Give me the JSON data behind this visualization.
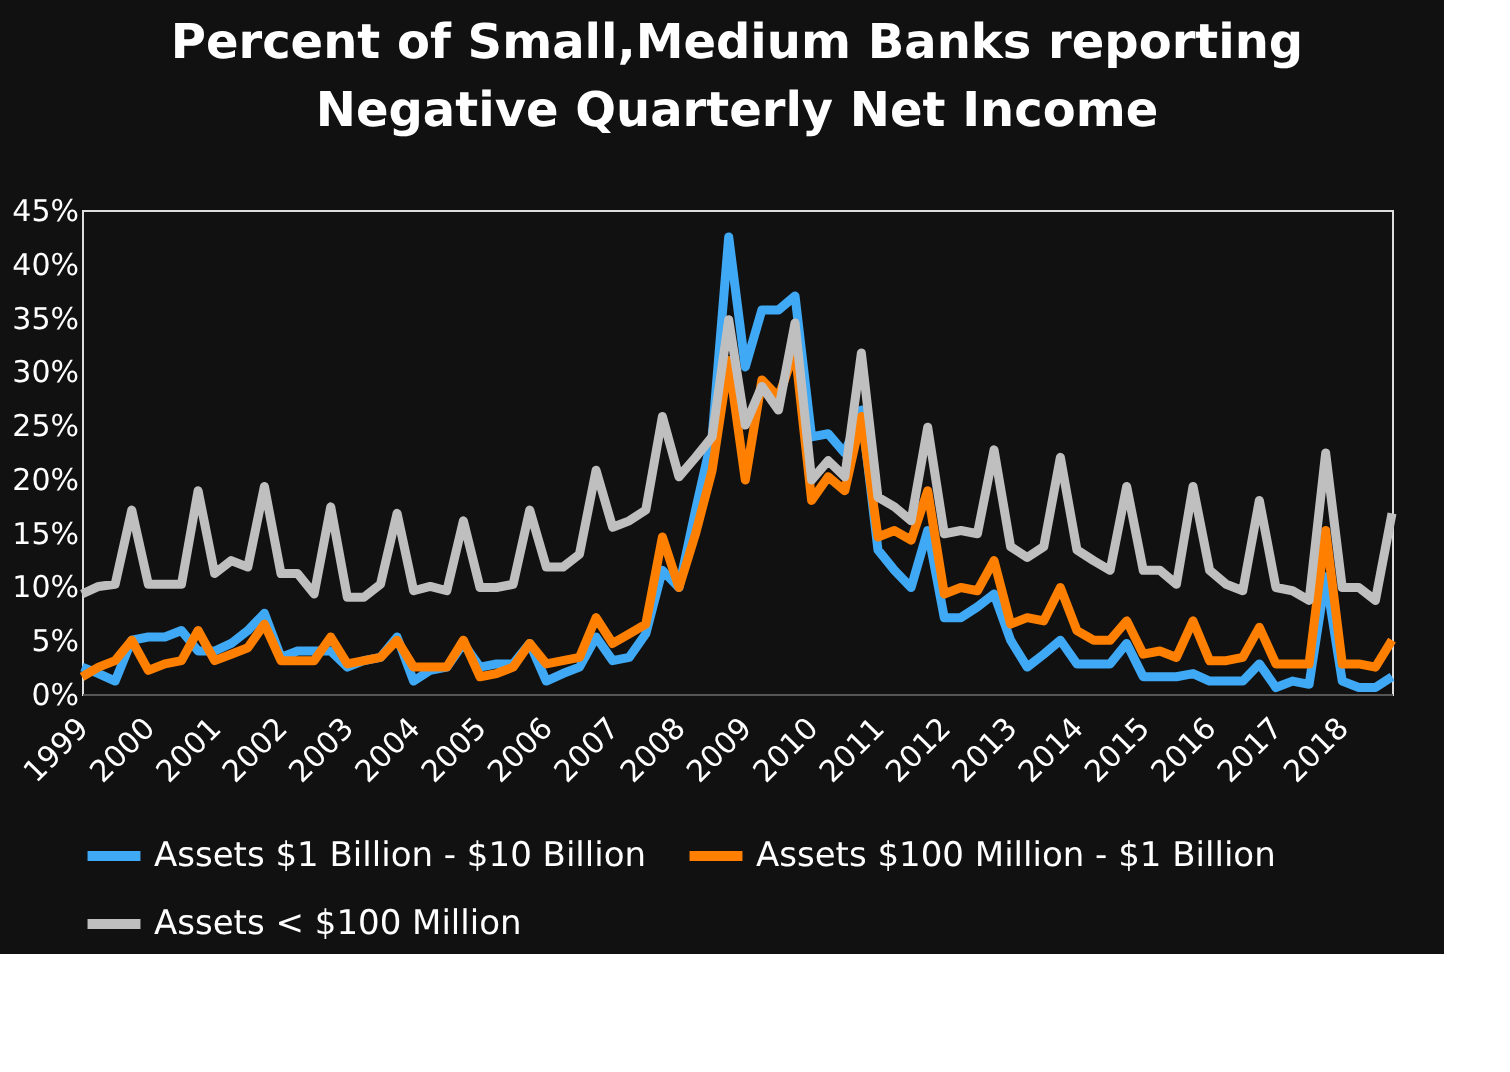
{
  "chart_data": {
    "type": "line",
    "title": [
      "Percent of Small,Medium Banks reporting",
      "Negative Quarterly Net Income"
    ],
    "categories": [
      "1999",
      null,
      null,
      null,
      "2000",
      null,
      null,
      null,
      "2001",
      null,
      null,
      null,
      "2002",
      null,
      null,
      null,
      "2003",
      null,
      null,
      null,
      "2004",
      null,
      null,
      null,
      "2005",
      null,
      null,
      null,
      "2006",
      null,
      null,
      null,
      "2007",
      null,
      null,
      null,
      "2008",
      null,
      null,
      null,
      "2009",
      null,
      null,
      null,
      "2010",
      null,
      null,
      null,
      "2011",
      null,
      null,
      null,
      "2012",
      null,
      null,
      null,
      "2013",
      null,
      null,
      null,
      "2014",
      null,
      null,
      null,
      "2015",
      null,
      null,
      null,
      "2016",
      null,
      null,
      null,
      "2017",
      null,
      null,
      null,
      "2018",
      null,
      null,
      null
    ],
    "series": [
      {
        "name": "Assets $1 Billion - $10 Billion",
        "color": "#3fa9f5",
        "values": [
          2.5,
          1.9,
          1.2,
          5,
          5.3,
          5.3,
          5.9,
          4,
          4,
          4.7,
          5.9,
          7.5,
          3.4,
          4,
          4,
          4,
          2.5,
          3.1,
          3.4,
          5.3,
          1.2,
          2.2,
          2.5,
          4.7,
          2.5,
          2.8,
          2.8,
          4.7,
          1.2,
          1.9,
          2.5,
          5.3,
          3.1,
          3.4,
          5.6,
          11.5,
          9.9,
          17.1,
          23.9,
          42.5,
          30.4,
          35.7,
          35.7,
          37,
          23.9,
          24.2,
          22.4,
          26.4,
          13.4,
          11.5,
          9.9,
          15.2,
          7.1,
          7.1,
          8.1,
          9.3,
          5,
          2.5,
          3.7,
          5,
          2.8,
          2.8,
          2.8,
          4.7,
          1.6,
          1.6,
          1.6,
          1.9,
          1.2,
          1.2,
          1.2,
          2.8,
          0.6,
          1.2,
          0.9,
          10.9,
          1.2,
          0.6,
          0.6,
          1.6
        ]
      },
      {
        "name": "Assets $100 Million - $1 Billion",
        "color": "#ff8000",
        "values": [
          1.6,
          2.5,
          3.1,
          5,
          2.2,
          2.8,
          3.1,
          5.9,
          3.1,
          3.7,
          4.3,
          6.5,
          3.1,
          3.1,
          3.1,
          5.3,
          2.8,
          3.1,
          3.4,
          5,
          2.5,
          2.5,
          2.5,
          5,
          1.6,
          1.9,
          2.5,
          4.7,
          2.8,
          3.1,
          3.4,
          7.1,
          4.7,
          5.6,
          6.5,
          14.6,
          9.9,
          14.9,
          20.8,
          31,
          19.9,
          29.2,
          27.6,
          32,
          18,
          20.2,
          18.9,
          25.8,
          14.6,
          15.2,
          14.3,
          18.9,
          9.3,
          9.9,
          9.6,
          12.4,
          6.5,
          7.1,
          6.8,
          9.9,
          5.9,
          5,
          5,
          6.8,
          3.7,
          4,
          3.4,
          6.8,
          3.1,
          3.1,
          3.4,
          6.2,
          2.8,
          2.8,
          2.8,
          15.2,
          2.8,
          2.8,
          2.5,
          5
        ]
      },
      {
        "name": "Assets < $100 Million",
        "color": "#bfbfbf",
        "values": [
          9.3,
          10,
          10.2,
          17.1,
          10.2,
          10.2,
          10.2,
          18.9,
          11.2,
          12.4,
          11.8,
          19.3,
          11.2,
          11.2,
          9.3,
          17.4,
          9,
          9,
          10.2,
          16.8,
          9.6,
          10,
          9.6,
          16.1,
          9.9,
          9.9,
          10.2,
          17.1,
          11.8,
          11.8,
          13,
          20.8,
          15.5,
          16.1,
          17.1,
          25.8,
          20.2,
          22,
          23.9,
          34.8,
          25,
          28.6,
          26.4,
          34.5,
          19.9,
          21.7,
          20.2,
          31.7,
          18.3,
          17.4,
          16.1,
          24.8,
          14.9,
          15.2,
          14.9,
          22.7,
          13.7,
          12.7,
          13.7,
          22,
          13.4,
          12.4,
          11.5,
          19.3,
          11.5,
          11.5,
          10.2,
          19.3,
          11.5,
          10.2,
          9.6,
          18,
          9.9,
          9.6,
          8.7,
          22.4,
          9.9,
          9.9,
          8.7,
          16.8
        ]
      }
    ],
    "ylim": [
      0,
      45
    ],
    "yticks": [
      {
        "value": 0,
        "label": "0%"
      },
      {
        "value": 5,
        "label": "5%"
      },
      {
        "value": 10,
        "label": "10%"
      },
      {
        "value": 15,
        "label": "15%"
      },
      {
        "value": 20,
        "label": "20%"
      },
      {
        "value": 25,
        "label": "25%"
      },
      {
        "value": 30,
        "label": "30%"
      },
      {
        "value": 35,
        "label": "35%"
      },
      {
        "value": 40,
        "label": "40%"
      },
      {
        "value": 45,
        "label": "45%"
      }
    ],
    "grid": false,
    "legend": "bottom",
    "line_style": "solid",
    "marker": "none"
  }
}
